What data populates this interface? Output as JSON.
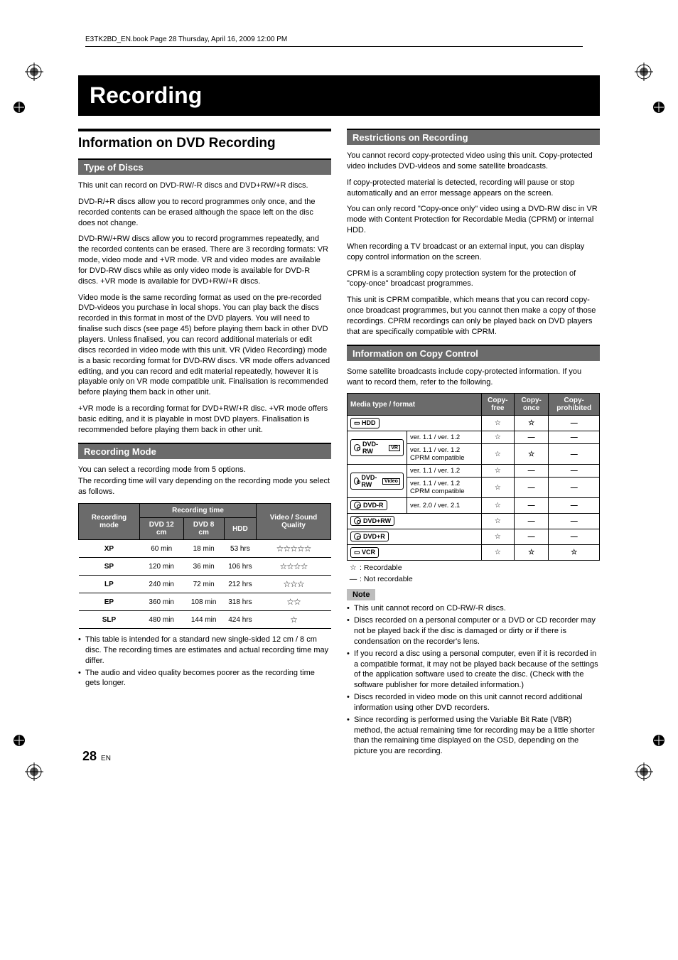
{
  "header_line": "E3TK2BD_EN.book  Page 28  Thursday, April 16, 2009  12:00 PM",
  "title": "Recording",
  "left": {
    "h2": "Information on DVD Recording",
    "sect1": "Type of Discs",
    "p1": "This unit can record on DVD-RW/-R discs and DVD+RW/+R discs.",
    "p2": "DVD-R/+R discs allow you to record programmes only once, and the recorded contents can be erased although the space left on the disc does not change.",
    "p3": "DVD-RW/+RW discs allow you to record programmes repeatedly, and the recorded contents can be erased. There are 3 recording formats: VR mode, video mode and +VR mode. VR and video modes are available for DVD-RW discs while as only video mode is available for DVD-R discs. +VR mode is available for DVD+RW/+R discs.",
    "p4": "Video mode is the same recording format as used on the pre-recorded DVD-videos you purchase in local shops. You can play back the discs recorded in this format in most of the DVD players. You will need to finalise such discs (see page 45) before playing them back in other DVD players. Unless finalised, you can record additional materials or edit discs recorded in video mode with this unit. VR (Video Recording) mode is a basic recording format for DVD-RW discs. VR mode offers advanced editing, and you can record and edit material repeatedly, however it is playable only on VR mode compatible unit. Finalisation is recommended before playing them back in other unit.",
    "p5": "+VR mode is a recording format for DVD+RW/+R disc. +VR mode offers basic editing, and it is playable in most DVD players. Finalisation is recommended before playing them back in other unit.",
    "sect2": "Recording Mode",
    "p6": "You can select a recording mode from 5 options.",
    "p7": "The recording time will vary depending on the recording mode you select as follows.",
    "table": {
      "head": {
        "mode": "Recording mode",
        "rectime": "Recording time",
        "dvd12": "DVD 12 cm",
        "dvd8": "DVD 8 cm",
        "hdd": "HDD",
        "quality": "Video / Sound Quality"
      },
      "rows": [
        {
          "mode": "XP",
          "d12": "60 min",
          "d8": "18 min",
          "hdd": "53 hrs",
          "q": "☆☆☆☆☆"
        },
        {
          "mode": "SP",
          "d12": "120 min",
          "d8": "36 min",
          "hdd": "106 hrs",
          "q": "☆☆☆☆"
        },
        {
          "mode": "LP",
          "d12": "240 min",
          "d8": "72 min",
          "hdd": "212 hrs",
          "q": "☆☆☆"
        },
        {
          "mode": "EP",
          "d12": "360 min",
          "d8": "108 min",
          "hdd": "318 hrs",
          "q": "☆☆"
        },
        {
          "mode": "SLP",
          "d12": "480 min",
          "d8": "144 min",
          "hdd": "424 hrs",
          "q": "☆"
        }
      ]
    },
    "b1": "This table is intended for a standard new single-sided 12 cm / 8 cm disc. The recording times are estimates and actual recording time may differ.",
    "b2": "The audio and video quality becomes poorer as the recording time gets longer."
  },
  "right": {
    "sect1": "Restrictions on Recording",
    "p1": "You cannot record copy-protected video using this unit. Copy-protected video includes DVD-videos and some satellite broadcasts.",
    "p2": "If copy-protected material is detected, recording will pause or stop automatically and an error message appears on the screen.",
    "p3": "You can only record \"Copy-once only\" video using a DVD-RW disc in VR mode with Content Protection for Recordable Media (CPRM) or internal HDD.",
    "p4": "When recording a TV broadcast or an external input, you can display copy control information on the screen.",
    "p5": "CPRM is a scrambling copy protection system for the protection of \"copy-once\" broadcast programmes.",
    "p6": "This unit is CPRM compatible, which means that you can record copy-once broadcast programmes, but you cannot then make a copy of those recordings. CPRM recordings can only be played back on DVD players that are specifically compatible with CPRM.",
    "sect2": "Information on Copy Control",
    "p7": "Some satellite broadcasts include copy-protected information. If you want to record them, refer to the following.",
    "copy": {
      "head": {
        "media": "Media type / format",
        "free": "Copy-free",
        "once": "Copy-once",
        "proh": "Copy-prohibited"
      },
      "rows": [
        {
          "m": "HDD",
          "v": "",
          "f": "☆",
          "o": "☆",
          "p": "—",
          "type": "hdd"
        },
        {
          "m": "DVD-RW",
          "sup": "VR",
          "v": "ver. 1.1 / ver. 1.2",
          "f": "☆",
          "o": "—",
          "p": "—",
          "type": "disc"
        },
        {
          "m": "",
          "sup": "",
          "v": "ver. 1.1 / ver. 1.2 CPRM compatible",
          "f": "☆",
          "o": "☆",
          "p": "—",
          "type": "sub"
        },
        {
          "m": "DVD-RW",
          "sup": "Video",
          "v": "ver. 1.1 / ver. 1.2",
          "f": "☆",
          "o": "—",
          "p": "—",
          "type": "disc"
        },
        {
          "m": "",
          "sup": "",
          "v": "ver. 1.1 / ver. 1.2 CPRM compatible",
          "f": "☆",
          "o": "—",
          "p": "—",
          "type": "sub"
        },
        {
          "m": "DVD-R",
          "sup": "",
          "v": "ver. 2.0 / ver. 2.1",
          "f": "☆",
          "o": "—",
          "p": "—",
          "type": "disc"
        },
        {
          "m": "DVD+RW",
          "sup": "",
          "v": "",
          "f": "☆",
          "o": "—",
          "p": "—",
          "type": "disc"
        },
        {
          "m": "DVD+R",
          "sup": "",
          "v": "",
          "f": "☆",
          "o": "—",
          "p": "—",
          "type": "disc"
        },
        {
          "m": "VCR",
          "sup": "",
          "v": "",
          "f": "☆",
          "o": "☆",
          "p": "☆",
          "type": "vcr"
        }
      ]
    },
    "legend1": ": Recordable",
    "legend2": ": Not recordable",
    "note": "Note",
    "nb1": "This unit cannot record on CD-RW/-R discs.",
    "nb2": "Discs recorded on a personal computer or a DVD or CD recorder may not be played back if the disc is damaged or dirty or if there is condensation on the recorder's lens.",
    "nb3": "If you record a disc using a personal computer, even if it is recorded in a compatible format, it may not be played back because of the settings of the application software used to create the disc. (Check with the software publisher for more detailed information.)",
    "nb4": "Discs recorded in video mode on this unit cannot record additional information using other DVD recorders.",
    "nb5": "Since recording is performed using the Variable Bit Rate (VBR) method, the actual remaining time for recording may be a little shorter than the remaining time displayed on the OSD, depending on the picture you are recording."
  },
  "page_num": "28",
  "page_lang": "EN",
  "star": "☆",
  "dash": "—"
}
